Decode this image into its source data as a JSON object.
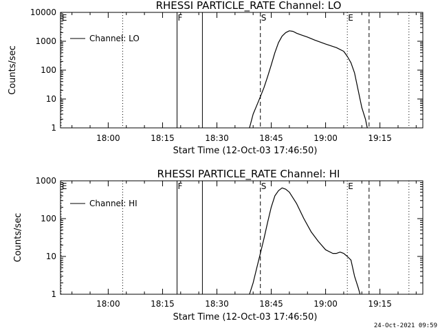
{
  "footer": {
    "timestamp": "24-Oct-2021 09:59"
  },
  "chart_data": [
    {
      "type": "line",
      "title": "RHESSI PARTICLE_RATE Channel: LO",
      "xlabel": "Start Time (12-Oct-03 17:46:50)",
      "ylabel": "Counts/sec",
      "y_scale": "log",
      "ylim": [
        1,
        10000
      ],
      "xlim_minutes_after_start": [
        0,
        100
      ],
      "x_tick_labels": [
        "18:00",
        "18:15",
        "18:30",
        "18:45",
        "19:00",
        "19:15"
      ],
      "y_tick_labels": [
        "1",
        "10",
        "100",
        "1000",
        "10000"
      ],
      "legend": {
        "position": "top-left",
        "entries": [
          "Channel: LO"
        ]
      },
      "markers": [
        {
          "label": "E",
          "time": "17:47",
          "style": "dotted"
        },
        {
          "label": "",
          "time": "18:04",
          "style": "dotted"
        },
        {
          "label": "F",
          "time": "18:19",
          "style": "solid"
        },
        {
          "label": "",
          "time": "18:26",
          "style": "solid"
        },
        {
          "label": "S",
          "time": "18:42",
          "style": "dashed"
        },
        {
          "label": "E",
          "time": "19:06",
          "style": "dotted"
        },
        {
          "label": "",
          "time": "19:12",
          "style": "dashed"
        },
        {
          "label": "",
          "time": "19:23",
          "style": "dotted"
        }
      ],
      "series": [
        {
          "name": "Channel: LO",
          "x": [
            "18:39",
            "18:40",
            "18:41",
            "18:42",
            "18:43",
            "18:44",
            "18:45",
            "18:46",
            "18:47",
            "18:48",
            "18:49",
            "18:50",
            "18:51",
            "18:52",
            "18:53",
            "18:55",
            "18:57",
            "19:00",
            "19:03",
            "19:05",
            "19:06",
            "19:07",
            "19:08",
            "19:09",
            "19:10",
            "19:11",
            "19:11:30"
          ],
          "y": [
            1,
            3,
            6,
            12,
            25,
            60,
            150,
            400,
            900,
            1500,
            2000,
            2300,
            2200,
            1900,
            1700,
            1400,
            1100,
            800,
            600,
            450,
            300,
            180,
            80,
            20,
            5,
            2,
            1
          ]
        }
      ]
    },
    {
      "type": "line",
      "title": "RHESSI PARTICLE_RATE Channel: HI",
      "xlabel": "Start Time (12-Oct-03 17:46:50)",
      "ylabel": "Counts/sec",
      "y_scale": "log",
      "ylim": [
        1,
        1000
      ],
      "xlim_minutes_after_start": [
        0,
        100
      ],
      "x_tick_labels": [
        "18:00",
        "18:15",
        "18:30",
        "18:45",
        "19:00",
        "19:15"
      ],
      "y_tick_labels": [
        "1",
        "10",
        "100",
        "1000"
      ],
      "legend": {
        "position": "top-left",
        "entries": [
          "Channel: HI"
        ]
      },
      "markers": [
        {
          "label": "E",
          "time": "17:47",
          "style": "dotted"
        },
        {
          "label": "",
          "time": "18:04",
          "style": "dotted"
        },
        {
          "label": "F",
          "time": "18:19",
          "style": "solid"
        },
        {
          "label": "",
          "time": "18:26",
          "style": "solid"
        },
        {
          "label": "S",
          "time": "18:42",
          "style": "dashed"
        },
        {
          "label": "E",
          "time": "19:06",
          "style": "dotted"
        },
        {
          "label": "",
          "time": "19:12",
          "style": "dashed"
        },
        {
          "label": "",
          "time": "19:23",
          "style": "dotted"
        }
      ],
      "series": [
        {
          "name": "Channel: HI",
          "x": [
            "18:39",
            "18:40",
            "18:41",
            "18:42",
            "18:43",
            "18:44",
            "18:45",
            "18:46",
            "18:47",
            "18:48",
            "18:49",
            "18:50",
            "18:52",
            "18:54",
            "18:56",
            "18:58",
            "19:00",
            "19:02",
            "19:03",
            "19:04",
            "19:05",
            "19:06",
            "19:07",
            "19:08",
            "19:09",
            "19:09:30"
          ],
          "y": [
            1,
            2,
            5,
            12,
            30,
            80,
            200,
            400,
            550,
            650,
            600,
            500,
            250,
            100,
            45,
            25,
            15,
            12,
            12,
            13,
            12,
            10,
            8,
            3,
            1.5,
            1
          ]
        }
      ]
    }
  ]
}
